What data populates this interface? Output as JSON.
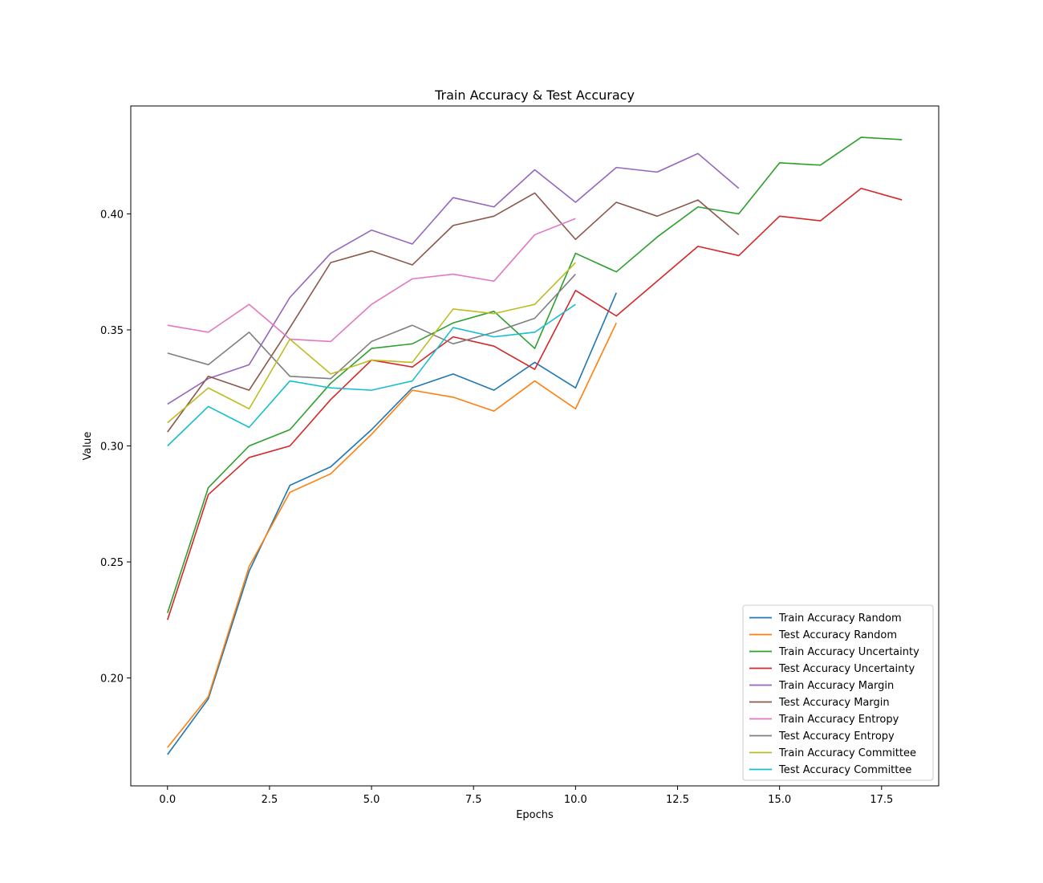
{
  "chart_data": {
    "type": "line",
    "title": "Train Accuracy & Test Accuracy",
    "xlabel": "Epochs",
    "ylabel": "Value",
    "xlim": [
      -0.9,
      18.9
    ],
    "ylim": [
      0.1535,
      0.4465
    ],
    "xticks": [
      0.0,
      2.5,
      5.0,
      7.5,
      10.0,
      12.5,
      15.0,
      17.5
    ],
    "xtick_labels": [
      "0.0",
      "2.5",
      "5.0",
      "7.5",
      "10.0",
      "12.5",
      "15.0",
      "17.5"
    ],
    "yticks": [
      0.2,
      0.25,
      0.3,
      0.35,
      0.4
    ],
    "ytick_labels": [
      "0.20",
      "0.25",
      "0.30",
      "0.35",
      "0.40"
    ],
    "grid": false,
    "legend_position": "lower-right",
    "series": [
      {
        "name": "Train Accuracy Random",
        "color": "#1f77b4",
        "values": [
          0.167,
          0.191,
          0.246,
          0.283,
          0.291,
          0.307,
          0.325,
          0.331,
          0.324,
          0.336,
          0.325,
          0.366
        ]
      },
      {
        "name": "Test Accuracy Random",
        "color": "#ff7f0e",
        "values": [
          0.17,
          0.192,
          0.248,
          0.28,
          0.288,
          0.305,
          0.324,
          0.321,
          0.315,
          0.328,
          0.316,
          0.353
        ]
      },
      {
        "name": "Train Accuracy Uncertainty",
        "color": "#2ca02c",
        "values": [
          0.228,
          0.282,
          0.3,
          0.307,
          0.327,
          0.342,
          0.344,
          0.353,
          0.358,
          0.342,
          0.383,
          0.375,
          0.39,
          0.403,
          0.4,
          0.422,
          0.421,
          0.433,
          0.432
        ]
      },
      {
        "name": "Test Accuracy Uncertainty",
        "color": "#d62728",
        "values": [
          0.225,
          0.279,
          0.295,
          0.3,
          0.32,
          0.337,
          0.334,
          0.347,
          0.343,
          0.333,
          0.367,
          0.356,
          0.371,
          0.386,
          0.382,
          0.399,
          0.397,
          0.411,
          0.406
        ]
      },
      {
        "name": "Train Accuracy Margin",
        "color": "#9467bd",
        "values": [
          0.318,
          0.329,
          0.335,
          0.364,
          0.383,
          0.393,
          0.387,
          0.407,
          0.403,
          0.419,
          0.405,
          0.42,
          0.418,
          0.426,
          0.411
        ]
      },
      {
        "name": "Test Accuracy Margin",
        "color": "#8c564b",
        "values": [
          0.306,
          0.33,
          0.324,
          0.351,
          0.379,
          0.384,
          0.378,
          0.395,
          0.399,
          0.409,
          0.389,
          0.405,
          0.399,
          0.406,
          0.391
        ]
      },
      {
        "name": "Train Accuracy Entropy",
        "color": "#e377c2",
        "values": [
          0.352,
          0.349,
          0.361,
          0.346,
          0.345,
          0.361,
          0.372,
          0.374,
          0.371,
          0.391,
          0.398
        ]
      },
      {
        "name": "Test Accuracy Entropy",
        "color": "#7f7f7f",
        "values": [
          0.34,
          0.335,
          0.349,
          0.33,
          0.329,
          0.345,
          0.352,
          0.344,
          0.349,
          0.355,
          0.374
        ]
      },
      {
        "name": "Train Accuracy Committee",
        "color": "#bcbd22",
        "values": [
          0.31,
          0.325,
          0.316,
          0.346,
          0.331,
          0.337,
          0.336,
          0.359,
          0.357,
          0.361,
          0.379
        ]
      },
      {
        "name": "Test Accuracy Committee",
        "color": "#17becf",
        "values": [
          0.3,
          0.317,
          0.308,
          0.328,
          0.325,
          0.324,
          0.328,
          0.351,
          0.347,
          0.349,
          0.361
        ]
      }
    ]
  }
}
